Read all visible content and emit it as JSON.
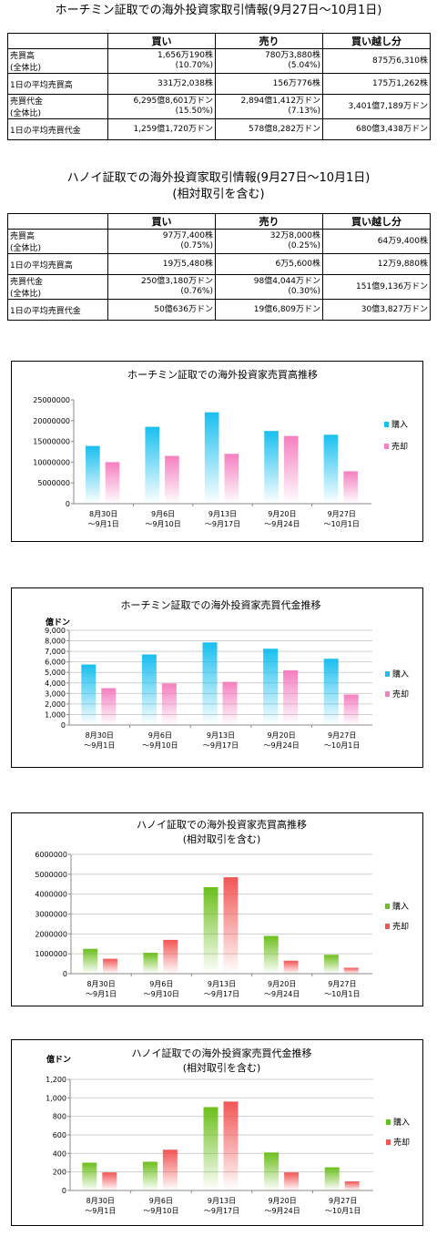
{
  "hcm_table": {
    "title": "ホーチミン証取での海外投資家取引情報(9月27日〜10月1日)",
    "headers": [
      "",
      "買い",
      "売り",
      "買い越し分"
    ],
    "rows": [
      {
        "label1": "売買高",
        "label2": "(全体比)",
        "buy1": "1,656万190株",
        "buy2": "(10.70%)",
        "sell1": "780万3,880株",
        "sell2": "(5.04%)",
        "net": "875万6,310株"
      },
      {
        "label1": "1日の平均売買高",
        "label2": "",
        "buy1": "331万2,038株",
        "buy2": "",
        "sell1": "156万776株",
        "sell2": "",
        "net": "175万1,262株"
      },
      {
        "label1": "売買代金",
        "label2": "(全体比)",
        "buy1": "6,295億8,601万ドン",
        "buy2": "(15.50%)",
        "sell1": "2,894億1,412万ドン",
        "sell2": "(7.13%)",
        "net": "3,401億7,189万ドン"
      },
      {
        "label1": "1日の平均売買代金",
        "label2": "",
        "buy1": "1,259億1,720万ドン",
        "buy2": "",
        "sell1": "578億8,282万ドン",
        "sell2": "",
        "net": "680億3,438万ドン"
      }
    ]
  },
  "hanoi_table": {
    "title": "ハノイ証取での海外投資家取引情報(9月27日〜10月1日)",
    "subtitle": "(相対取引を含む)",
    "headers": [
      "",
      "買い",
      "売り",
      "買い越し分"
    ],
    "rows": [
      {
        "label1": "売買高",
        "label2": "(全体比)",
        "buy1": "97万7,400株",
        "buy2": "(0.75%)",
        "sell1": "32万8,000株",
        "sell2": "(0.25%)",
        "net": "64万9,400株"
      },
      {
        "label1": "1日の平均売買高",
        "label2": "",
        "buy1": "19万5,480株",
        "buy2": "",
        "sell1": "6万5,600株",
        "sell2": "",
        "net": "12万9,880株"
      },
      {
        "label1": "売買代金",
        "label2": "(全体比)",
        "buy1": "250億3,180万ドン",
        "buy2": "(0.76%)",
        "sell1": "98億4,044万ドン",
        "sell2": "(0.30%)",
        "net": "151億9,136万ドン"
      },
      {
        "label1": "1日の平均売買代金",
        "label2": "",
        "buy1": "50億636万ドン",
        "buy2": "",
        "sell1": "19億6,809万ドン",
        "sell2": "",
        "net": "30億3,827万ドン"
      }
    ]
  },
  "chart_data": [
    {
      "type": "bar",
      "title": "ホーチミン証取での海外投資家売買高推移",
      "subtitle": "",
      "unit_label": "",
      "categories": [
        [
          "8月30日",
          "〜9月1日"
        ],
        [
          "9月6日",
          "〜9月10日"
        ],
        [
          "9月13日",
          "〜9月17日"
        ],
        [
          "9月20日",
          "〜9月24日"
        ],
        [
          "9月27日",
          "〜10月1日"
        ]
      ],
      "series": [
        {
          "name": "購入",
          "values": [
            13900000,
            18500000,
            22000000,
            17500000,
            16600000
          ]
        },
        {
          "name": "売却",
          "values": [
            10000000,
            11500000,
            12000000,
            16300000,
            7800000
          ]
        }
      ],
      "ylim": [
        0,
        25000000
      ],
      "yticks": [
        "0",
        "5000000",
        "10000000",
        "15000000",
        "20000000",
        "25000000"
      ],
      "colors": [
        "#19bff0",
        "#f57fc0"
      ],
      "grid": false,
      "legend": "right"
    },
    {
      "type": "bar",
      "title": "ホーチミン証取での海外投資家売買代金推移",
      "subtitle": "",
      "unit_label": "億ドン",
      "categories": [
        [
          "8月30日",
          "〜9月1日"
        ],
        [
          "9月6日",
          "〜9月10日"
        ],
        [
          "9月13日",
          "〜9月17日"
        ],
        [
          "9月20日",
          "〜9月24日"
        ],
        [
          "9月27日",
          "〜10月1日"
        ]
      ],
      "series": [
        {
          "name": "購入",
          "values": [
            5750,
            6700,
            7850,
            7250,
            6300
          ]
        },
        {
          "name": "売却",
          "values": [
            3500,
            3950,
            4100,
            5200,
            2900
          ]
        }
      ],
      "ylim": [
        0,
        9000
      ],
      "yticks": [
        "0",
        "1,000",
        "2,000",
        "3,000",
        "4,000",
        "5,000",
        "6,000",
        "7,000",
        "8,000",
        "9,000"
      ],
      "colors": [
        "#19bff0",
        "#f57fc0"
      ],
      "grid": true,
      "legend": "right"
    },
    {
      "type": "bar",
      "title": "ハノイ証取での海外投資家売買高推移",
      "subtitle": "(相対取引を含む)",
      "unit_label": "",
      "categories": [
        [
          "8月30日",
          "〜9月1日"
        ],
        [
          "9月6日",
          "〜9月10日"
        ],
        [
          "9月13日",
          "〜9月17日"
        ],
        [
          "9月20日",
          "〜9月24日"
        ],
        [
          "9月27日",
          "〜10月1日"
        ]
      ],
      "series": [
        {
          "name": "購入",
          "values": [
            1250000,
            1050000,
            4350000,
            1900000,
            950000
          ]
        },
        {
          "name": "売却",
          "values": [
            750000,
            1700000,
            4850000,
            650000,
            300000
          ]
        }
      ],
      "ylim": [
        0,
        6000000
      ],
      "yticks": [
        "0",
        "1000000",
        "2000000",
        "3000000",
        "4000000",
        "5000000",
        "6000000"
      ],
      "colors": [
        "#6cbf1c",
        "#f25555"
      ],
      "grid": true,
      "legend": "right"
    },
    {
      "type": "bar",
      "title": "ハノイ証取での海外投資家売買代金推移",
      "subtitle": "(相対取引を含む)",
      "unit_label": "億ドン",
      "categories": [
        [
          "8月30日",
          "〜9月1日"
        ],
        [
          "9月6日",
          "〜9月10日"
        ],
        [
          "9月13日",
          "〜9月17日"
        ],
        [
          "9月20日",
          "〜9月24日"
        ],
        [
          "9月27日",
          "〜10月1日"
        ]
      ],
      "series": [
        {
          "name": "購入",
          "values": [
            300,
            310,
            900,
            410,
            250
          ]
        },
        {
          "name": "売却",
          "values": [
            195,
            440,
            960,
            195,
            98
          ]
        }
      ],
      "ylim": [
        0,
        1200
      ],
      "yticks": [
        "0",
        "200",
        "400",
        "600",
        "800",
        "1,000",
        "1,200"
      ],
      "colors": [
        "#6cbf1c",
        "#f25555"
      ],
      "grid": true,
      "legend": "right"
    }
  ]
}
